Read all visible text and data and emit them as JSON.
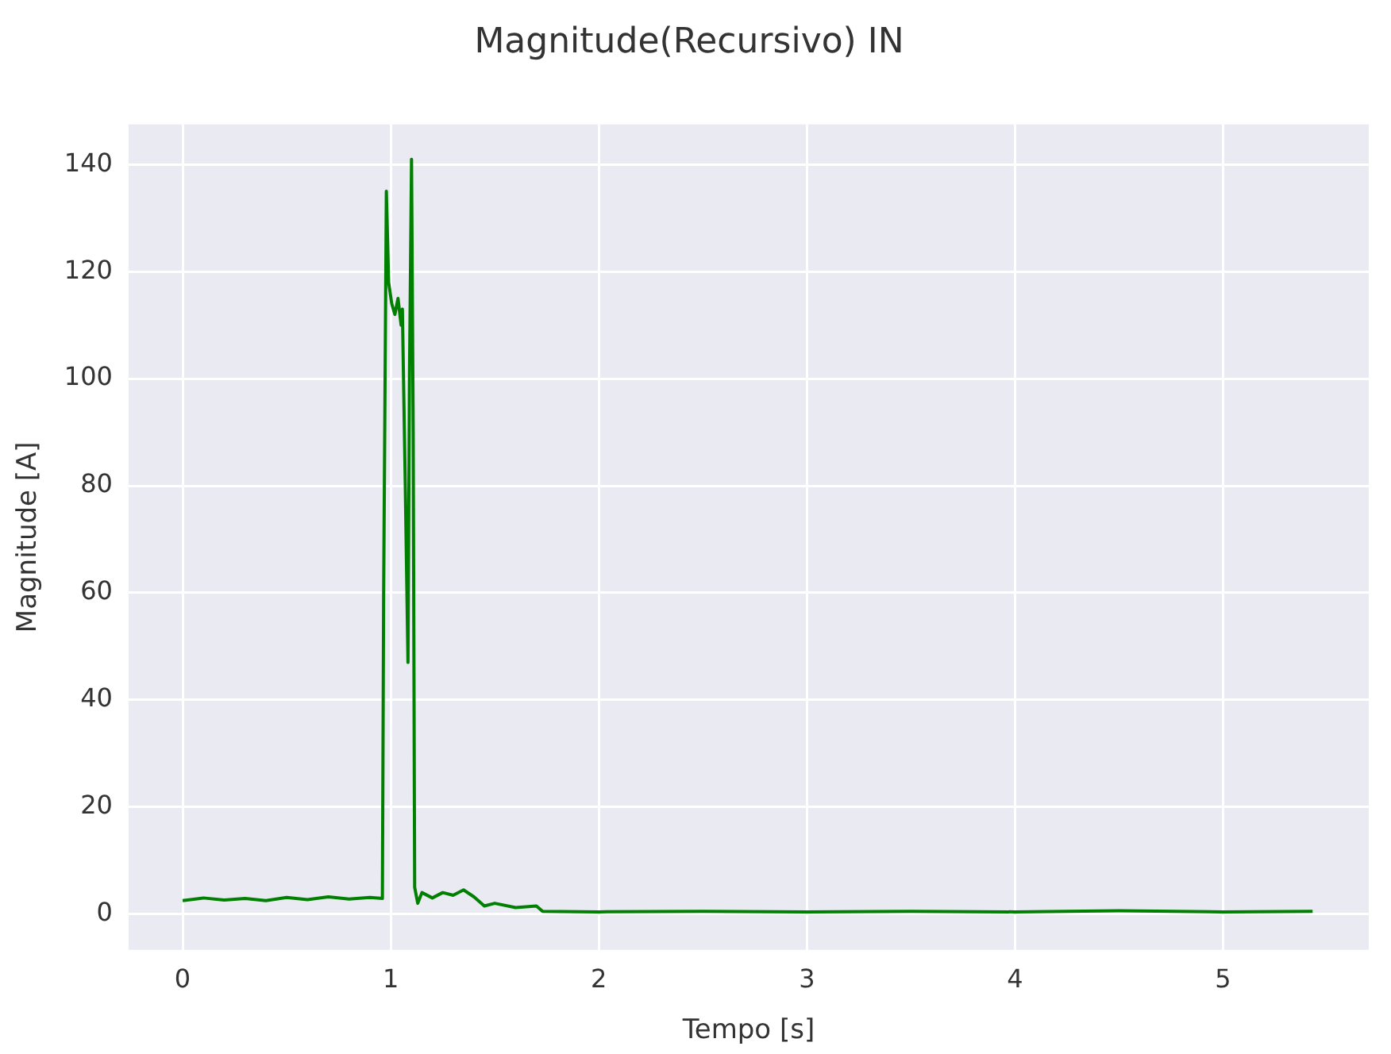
{
  "chart_data": {
    "type": "line",
    "title": "Magnitude(Recursivo) IN",
    "xlabel": "Tempo [s]",
    "ylabel": "Magnitude [A]",
    "x": [
      0,
      0.1,
      0.2,
      0.3,
      0.4,
      0.5,
      0.6,
      0.7,
      0.8,
      0.9,
      0.96,
      0.966,
      0.979,
      0.99,
      1.005,
      1.02,
      1.035,
      1.05,
      1.056,
      1.07,
      1.083,
      1.09,
      1.1,
      1.108,
      1.115,
      1.13,
      1.15,
      1.2,
      1.25,
      1.3,
      1.35,
      1.4,
      1.45,
      1.5,
      1.6,
      1.7,
      1.73,
      2,
      2.5,
      3,
      3.5,
      4,
      4.5,
      5,
      5.43
    ],
    "series": [
      {
        "color": "#008000",
        "values": [
          2.5,
          3,
          2.6,
          2.9,
          2.5,
          3.1,
          2.7,
          3.2,
          2.8,
          3.1,
          2.9,
          60,
          135,
          118,
          114,
          112,
          115,
          110,
          113,
          80,
          47,
          100,
          141,
          90,
          5,
          2,
          4,
          3,
          4,
          3.5,
          4.5,
          3.2,
          1.5,
          2,
          1.2,
          1.5,
          0.5,
          0.4,
          0.5,
          0.4,
          0.5,
          0.4,
          0.6,
          0.4,
          0.5
        ]
      }
    ],
    "xlim": [
      -0.26,
      5.7
    ],
    "xticks": [
      0,
      1,
      2,
      3,
      4,
      5
    ],
    "ylim": [
      -6.7,
      147.5
    ],
    "yticks": [
      0,
      20,
      40,
      60,
      80,
      100,
      120,
      140
    ],
    "grid": true,
    "legend": false,
    "marker": "none",
    "line_style": "solid"
  }
}
